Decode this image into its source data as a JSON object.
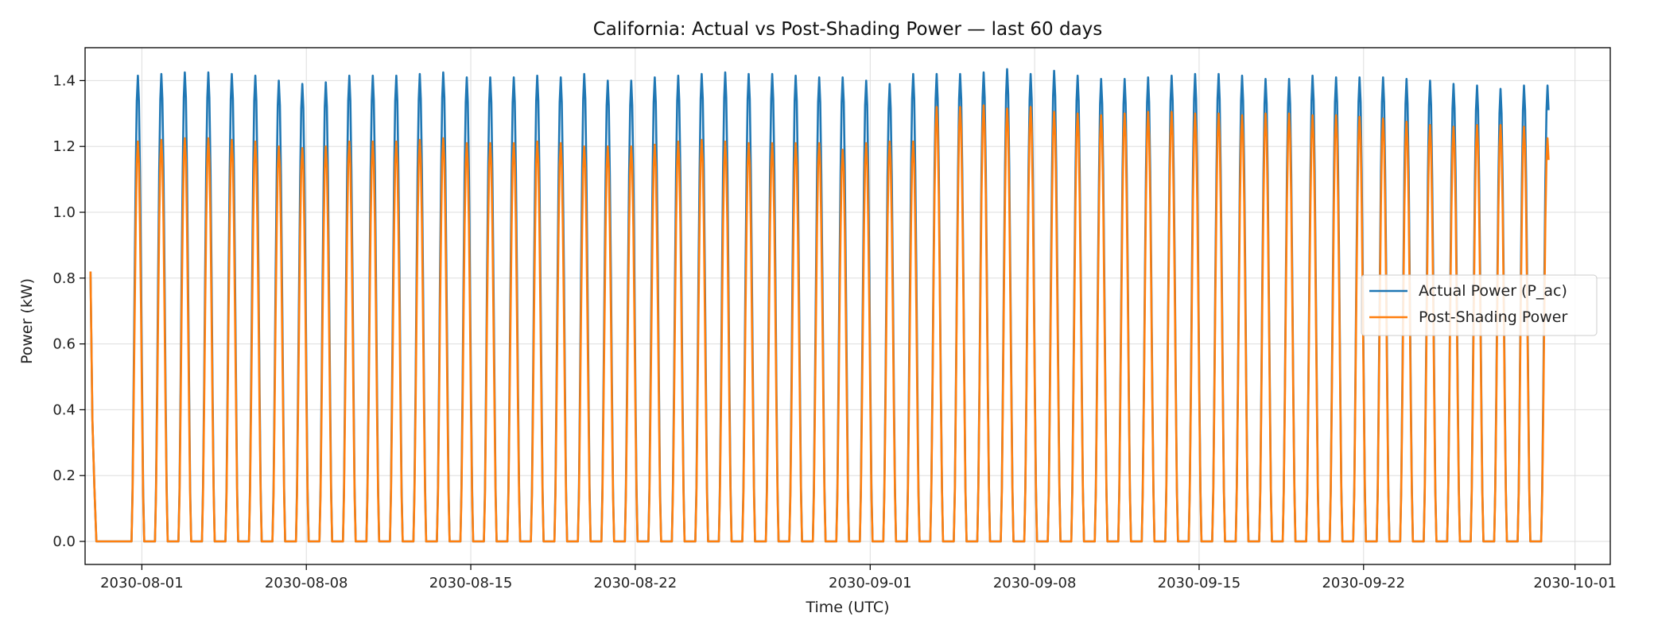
{
  "chart_data": {
    "type": "line",
    "title": "California: Actual vs Post-Shading Power — last 60 days",
    "xlabel": "Time (UTC)",
    "ylabel": "Power (kW)",
    "xlim": [
      "2030-07-29T14:00",
      "2030-10-02T12:00"
    ],
    "ylim": [
      -0.07,
      1.5
    ],
    "x_ticks": [
      "2030-08-01",
      "2030-08-08",
      "2030-08-15",
      "2030-08-22",
      "2030-09-01",
      "2030-09-08",
      "2030-09-15",
      "2030-09-22",
      "2030-10-01"
    ],
    "y_ticks": [
      0.0,
      0.2,
      0.4,
      0.6,
      0.8,
      1.0,
      1.2,
      1.4
    ],
    "y_tick_labels": [
      "0.0",
      "0.2",
      "0.4",
      "0.6",
      "0.8",
      "1.0",
      "1.2",
      "1.4"
    ],
    "grid": true,
    "legend_position": "center-right",
    "colors": {
      "actual": "#1f77b4",
      "shaded": "#ff7f0e"
    },
    "daily_start": "2030-07-31",
    "series": [
      {
        "name": "Actual Power (P_ac)",
        "initial_value": 0.82,
        "daily_peaks": [
          1.415,
          1.42,
          1.425,
          1.425,
          1.42,
          1.415,
          1.4,
          1.39,
          1.395,
          1.415,
          1.415,
          1.415,
          1.42,
          1.425,
          1.41,
          1.41,
          1.41,
          1.415,
          1.41,
          1.42,
          1.4,
          1.4,
          1.41,
          1.415,
          1.42,
          1.425,
          1.42,
          1.42,
          1.415,
          1.41,
          1.41,
          1.4,
          1.39,
          1.42,
          1.42,
          1.42,
          1.425,
          1.435,
          1.42,
          1.43,
          1.415,
          1.405,
          1.405,
          1.41,
          1.415,
          1.42,
          1.42,
          1.415,
          1.405,
          1.405,
          1.415,
          1.41,
          1.41,
          1.41,
          1.405,
          1.4,
          1.39,
          1.385,
          1.375,
          1.385,
          1.385
        ]
      },
      {
        "name": "Post-Shading Power",
        "initial_value": 0.82,
        "daily_peaks": [
          1.215,
          1.22,
          1.225,
          1.225,
          1.22,
          1.215,
          1.2,
          1.195,
          1.2,
          1.215,
          1.215,
          1.215,
          1.22,
          1.225,
          1.21,
          1.21,
          1.21,
          1.215,
          1.21,
          1.2,
          1.2,
          1.2,
          1.205,
          1.215,
          1.22,
          1.215,
          1.21,
          1.21,
          1.21,
          1.21,
          1.19,
          1.21,
          1.215,
          1.215,
          1.32,
          1.32,
          1.325,
          1.315,
          1.32,
          1.305,
          1.3,
          1.295,
          1.3,
          1.305,
          1.305,
          1.3,
          1.3,
          1.295,
          1.3,
          1.3,
          1.295,
          1.295,
          1.29,
          1.285,
          1.275,
          1.265,
          1.26,
          1.265,
          1.265,
          1.26,
          1.225
        ]
      }
    ]
  }
}
